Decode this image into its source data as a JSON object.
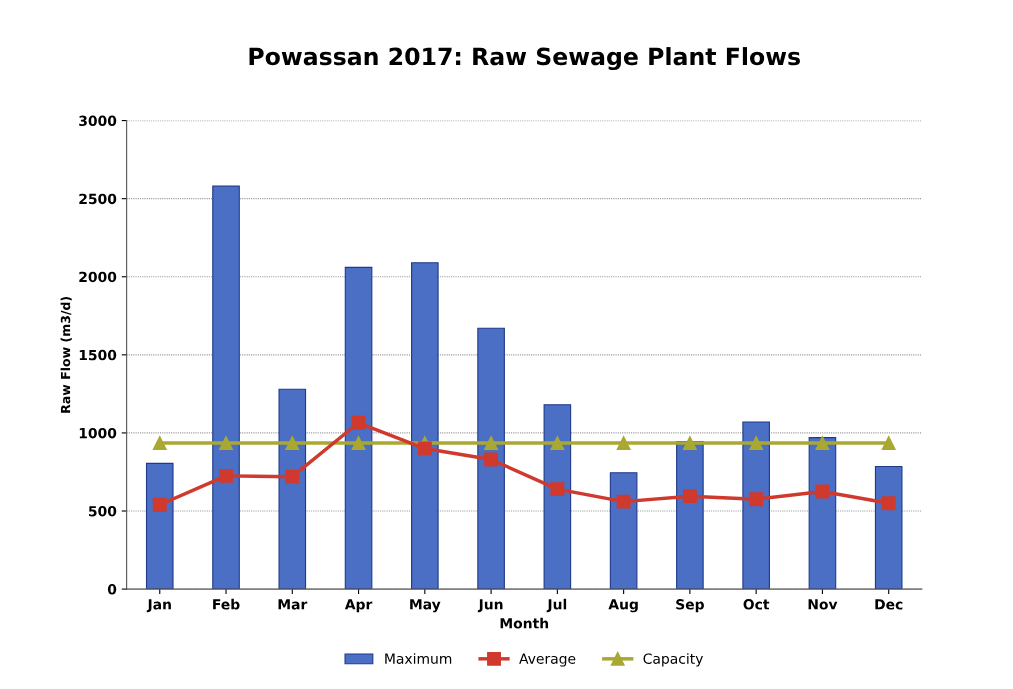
{
  "chart_data": {
    "type": "bar",
    "title": "Powassan 2017: Raw Sewage Plant Flows",
    "xlabel": "Month",
    "ylabel": "Raw Flow (m3/d)",
    "categories": [
      "Jan",
      "Feb",
      "Mar",
      "Apr",
      "May",
      "Jun",
      "Jul",
      "Aug",
      "Sep",
      "Oct",
      "Nov",
      "Dec"
    ],
    "series": [
      {
        "name": "Maximum",
        "color": "#4a6fc4",
        "values": [
          805,
          2580,
          1280,
          2060,
          2090,
          1670,
          1180,
          745,
          945,
          1070,
          970,
          785
        ]
      },
      {
        "name": "Average",
        "type": "line",
        "color": "#d03a2e",
        "marker": "square",
        "values": [
          540,
          725,
          720,
          1065,
          900,
          830,
          640,
          560,
          595,
          575,
          625,
          550
        ]
      },
      {
        "name": "Capacity",
        "type": "line",
        "color": "#a8a832",
        "marker": "triangle",
        "values": [
          935,
          935,
          935,
          935,
          935,
          935,
          935,
          935,
          935,
          935,
          935,
          935
        ]
      }
    ],
    "ylim": [
      0,
      3000
    ],
    "yticks": [
      0,
      500,
      1000,
      1500,
      2000,
      2500,
      3000
    ],
    "grid": "y",
    "legend": "bottom"
  }
}
